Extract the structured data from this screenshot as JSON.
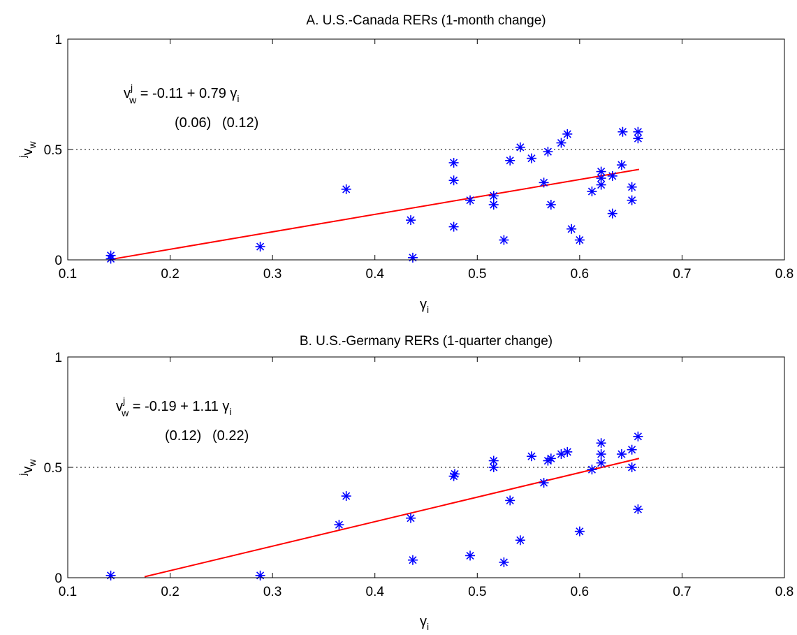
{
  "chart_data": [
    {
      "type": "scatter",
      "title": "A. U.S.-Canada RERs (1-month change)",
      "xlabel": "γ",
      "xlabel_sub": "i",
      "ylabel": "v",
      "ylabel_sub": "w",
      "ylabel_sup": "j",
      "xlim": [
        0.1,
        0.8
      ],
      "ylim": [
        0,
        1
      ],
      "xticks": [
        "0.1",
        "0.2",
        "0.3",
        "0.4",
        "0.5",
        "0.6",
        "0.7",
        "0.8"
      ],
      "yticks": [
        "0",
        "0.5",
        "1"
      ],
      "reference_line_y": 0.5,
      "colors": {
        "points": "#0000ff",
        "fit": "#ff0000",
        "reference": "#000000"
      },
      "equation": {
        "lhs": "v",
        "lhs_sup": "j",
        "lhs_sub": "w",
        "rhs_1": " = -0.11 +  0.79 γ",
        "rhs_sub": "i",
        "se_1": "(0.06)",
        "se_2": "(0.12)"
      },
      "fit": {
        "intercept": -0.11,
        "slope": 0.79,
        "x_range": [
          0.142,
          0.658
        ]
      },
      "points": [
        [
          0.142,
          0.005
        ],
        [
          0.142,
          0.02
        ],
        [
          0.288,
          0.06
        ],
        [
          0.372,
          0.32
        ],
        [
          0.435,
          0.18
        ],
        [
          0.437,
          0.01
        ],
        [
          0.477,
          0.15
        ],
        [
          0.477,
          0.36
        ],
        [
          0.477,
          0.44
        ],
        [
          0.493,
          0.27
        ],
        [
          0.516,
          0.25
        ],
        [
          0.516,
          0.29
        ],
        [
          0.526,
          0.09
        ],
        [
          0.532,
          0.45
        ],
        [
          0.542,
          0.51
        ],
        [
          0.553,
          0.46
        ],
        [
          0.565,
          0.35
        ],
        [
          0.569,
          0.49
        ],
        [
          0.572,
          0.25
        ],
        [
          0.582,
          0.53
        ],
        [
          0.588,
          0.57
        ],
        [
          0.592,
          0.14
        ],
        [
          0.6,
          0.09
        ],
        [
          0.612,
          0.31
        ],
        [
          0.621,
          0.34
        ],
        [
          0.621,
          0.37
        ],
        [
          0.621,
          0.4
        ],
        [
          0.632,
          0.38
        ],
        [
          0.632,
          0.21
        ],
        [
          0.641,
          0.43
        ],
        [
          0.642,
          0.58
        ],
        [
          0.651,
          0.27
        ],
        [
          0.651,
          0.33
        ],
        [
          0.657,
          0.55
        ],
        [
          0.657,
          0.58
        ]
      ]
    },
    {
      "type": "scatter",
      "title": "B. U.S.-Germany RERs (1-quarter change)",
      "xlabel": "γ",
      "xlabel_sub": "i",
      "ylabel": "v",
      "ylabel_sub": "w",
      "ylabel_sup": "j",
      "xlim": [
        0.1,
        0.8
      ],
      "ylim": [
        0,
        1
      ],
      "xticks": [
        "0.1",
        "0.2",
        "0.3",
        "0.4",
        "0.5",
        "0.6",
        "0.7",
        "0.8"
      ],
      "yticks": [
        "0",
        "0.5",
        "1"
      ],
      "reference_line_y": 0.5,
      "colors": {
        "points": "#0000ff",
        "fit": "#ff0000",
        "reference": "#000000"
      },
      "equation": {
        "lhs": "v",
        "lhs_sup": "j",
        "lhs_sub": "w",
        "rhs_1": " = -0.19 +  1.11 γ",
        "rhs_sub": "i",
        "se_1": "(0.12)",
        "se_2": "(0.22)"
      },
      "fit": {
        "intercept": -0.19,
        "slope": 1.11,
        "x_range": [
          0.175,
          0.658
        ]
      },
      "points": [
        [
          0.142,
          0.01
        ],
        [
          0.288,
          0.01
        ],
        [
          0.365,
          0.24
        ],
        [
          0.372,
          0.37
        ],
        [
          0.435,
          0.27
        ],
        [
          0.437,
          0.08
        ],
        [
          0.477,
          0.46
        ],
        [
          0.478,
          0.47
        ],
        [
          0.493,
          0.1
        ],
        [
          0.516,
          0.5
        ],
        [
          0.516,
          0.53
        ],
        [
          0.526,
          0.07
        ],
        [
          0.532,
          0.35
        ],
        [
          0.542,
          0.17
        ],
        [
          0.553,
          0.55
        ],
        [
          0.565,
          0.43
        ],
        [
          0.569,
          0.53
        ],
        [
          0.572,
          0.54
        ],
        [
          0.582,
          0.56
        ],
        [
          0.588,
          0.57
        ],
        [
          0.6,
          0.21
        ],
        [
          0.612,
          0.49
        ],
        [
          0.621,
          0.61
        ],
        [
          0.621,
          0.56
        ],
        [
          0.621,
          0.52
        ],
        [
          0.641,
          0.56
        ],
        [
          0.651,
          0.5
        ],
        [
          0.651,
          0.58
        ],
        [
          0.657,
          0.64
        ],
        [
          0.657,
          0.31
        ]
      ]
    }
  ]
}
